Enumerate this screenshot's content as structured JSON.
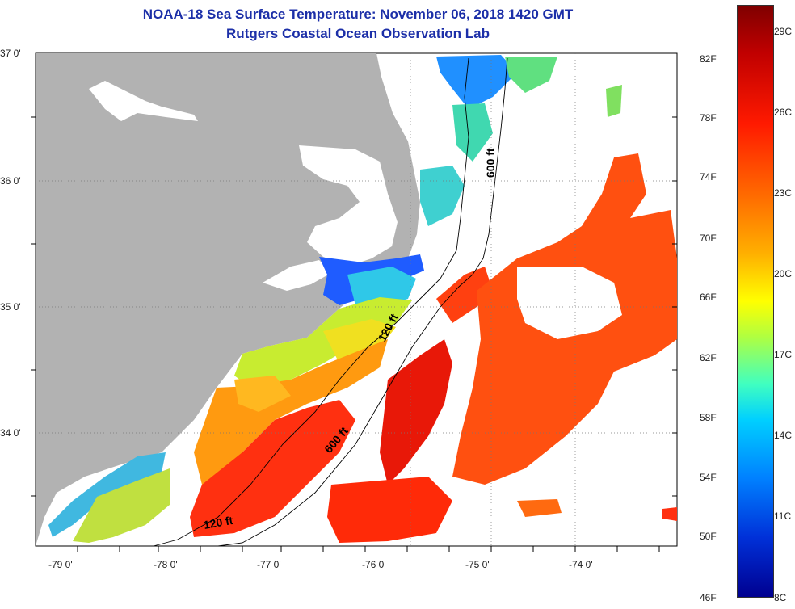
{
  "title": {
    "line1": "NOAA-18 Sea Surface Temperature:  November 06, 2018 1420 GMT",
    "line2": "Rutgers Coastal Ocean Observation Lab"
  },
  "map": {
    "lon_range": [
      -79.3,
      -73.2
    ],
    "lat_range": [
      33.15,
      37.0
    ],
    "lat_labels": [
      "37 0'",
      "36 0'",
      "35 0'",
      "34 0'"
    ],
    "lon_labels": [
      "-79 0'",
      "-78 0'",
      "-77 0'",
      "-76 0'",
      "-75 0'",
      "-74 0'"
    ],
    "contour_labels": [
      "600 ft",
      "120 ft",
      "600 ft",
      "120 ft"
    ],
    "land_color": "#b2b2b2"
  },
  "colorbar": {
    "fahrenheit_labels": [
      "82F",
      "78F",
      "74F",
      "70F",
      "66F",
      "62F",
      "58F",
      "54F",
      "50F",
      "46F"
    ],
    "celsius_labels": [
      "29C",
      "26C",
      "23C",
      "20C",
      "17C",
      "14C",
      "11C",
      "8C"
    ],
    "gradient_colors": [
      "#7f0000",
      "#ff1a00",
      "#ff6a00",
      "#ffff00",
      "#40ffc0",
      "#0080ff",
      "#000090"
    ]
  }
}
